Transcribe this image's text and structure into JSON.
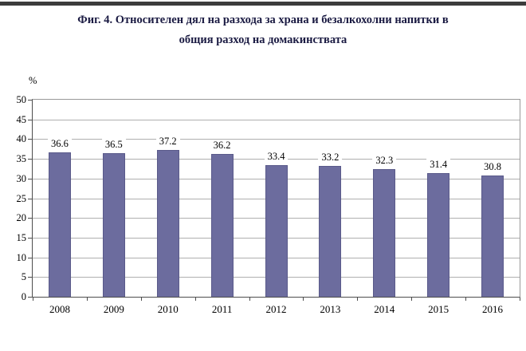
{
  "title": {
    "line1": "Фиг. 4. Относителен дял на разхода за храна и безалкохолни напитки в",
    "line2": "общия разход на домакинствата"
  },
  "chart_data": {
    "type": "bar",
    "title": "Фиг. 4. Относителен дял на разхода за храна и безалкохолни напитки в общия разход на домакинствата",
    "categories": [
      "2008",
      "2009",
      "2010",
      "2011",
      "2012",
      "2013",
      "2014",
      "2015",
      "2016"
    ],
    "values": [
      36.6,
      36.5,
      37.2,
      36.2,
      33.4,
      33.2,
      32.3,
      31.4,
      30.8
    ],
    "value_labels": [
      "36.6",
      "36.5",
      "37.2",
      "36.2",
      "33.4",
      "33.2",
      "32.3",
      "31.4",
      "30.8"
    ],
    "xlabel": "",
    "ylabel": "%",
    "ylim": [
      0,
      50
    ],
    "ytick_step": 5,
    "grid": true,
    "legend": false
  },
  "colors": {
    "bar_fill": "#6C6C9E",
    "bar_border": "#5A5A8A",
    "gridline": "#AFAFAF",
    "axis": "#4D4D4D",
    "plot_border": "#999999",
    "title_text": "#1A1A42",
    "label_text": "#000000",
    "top_rule": "#3C3C3C"
  }
}
